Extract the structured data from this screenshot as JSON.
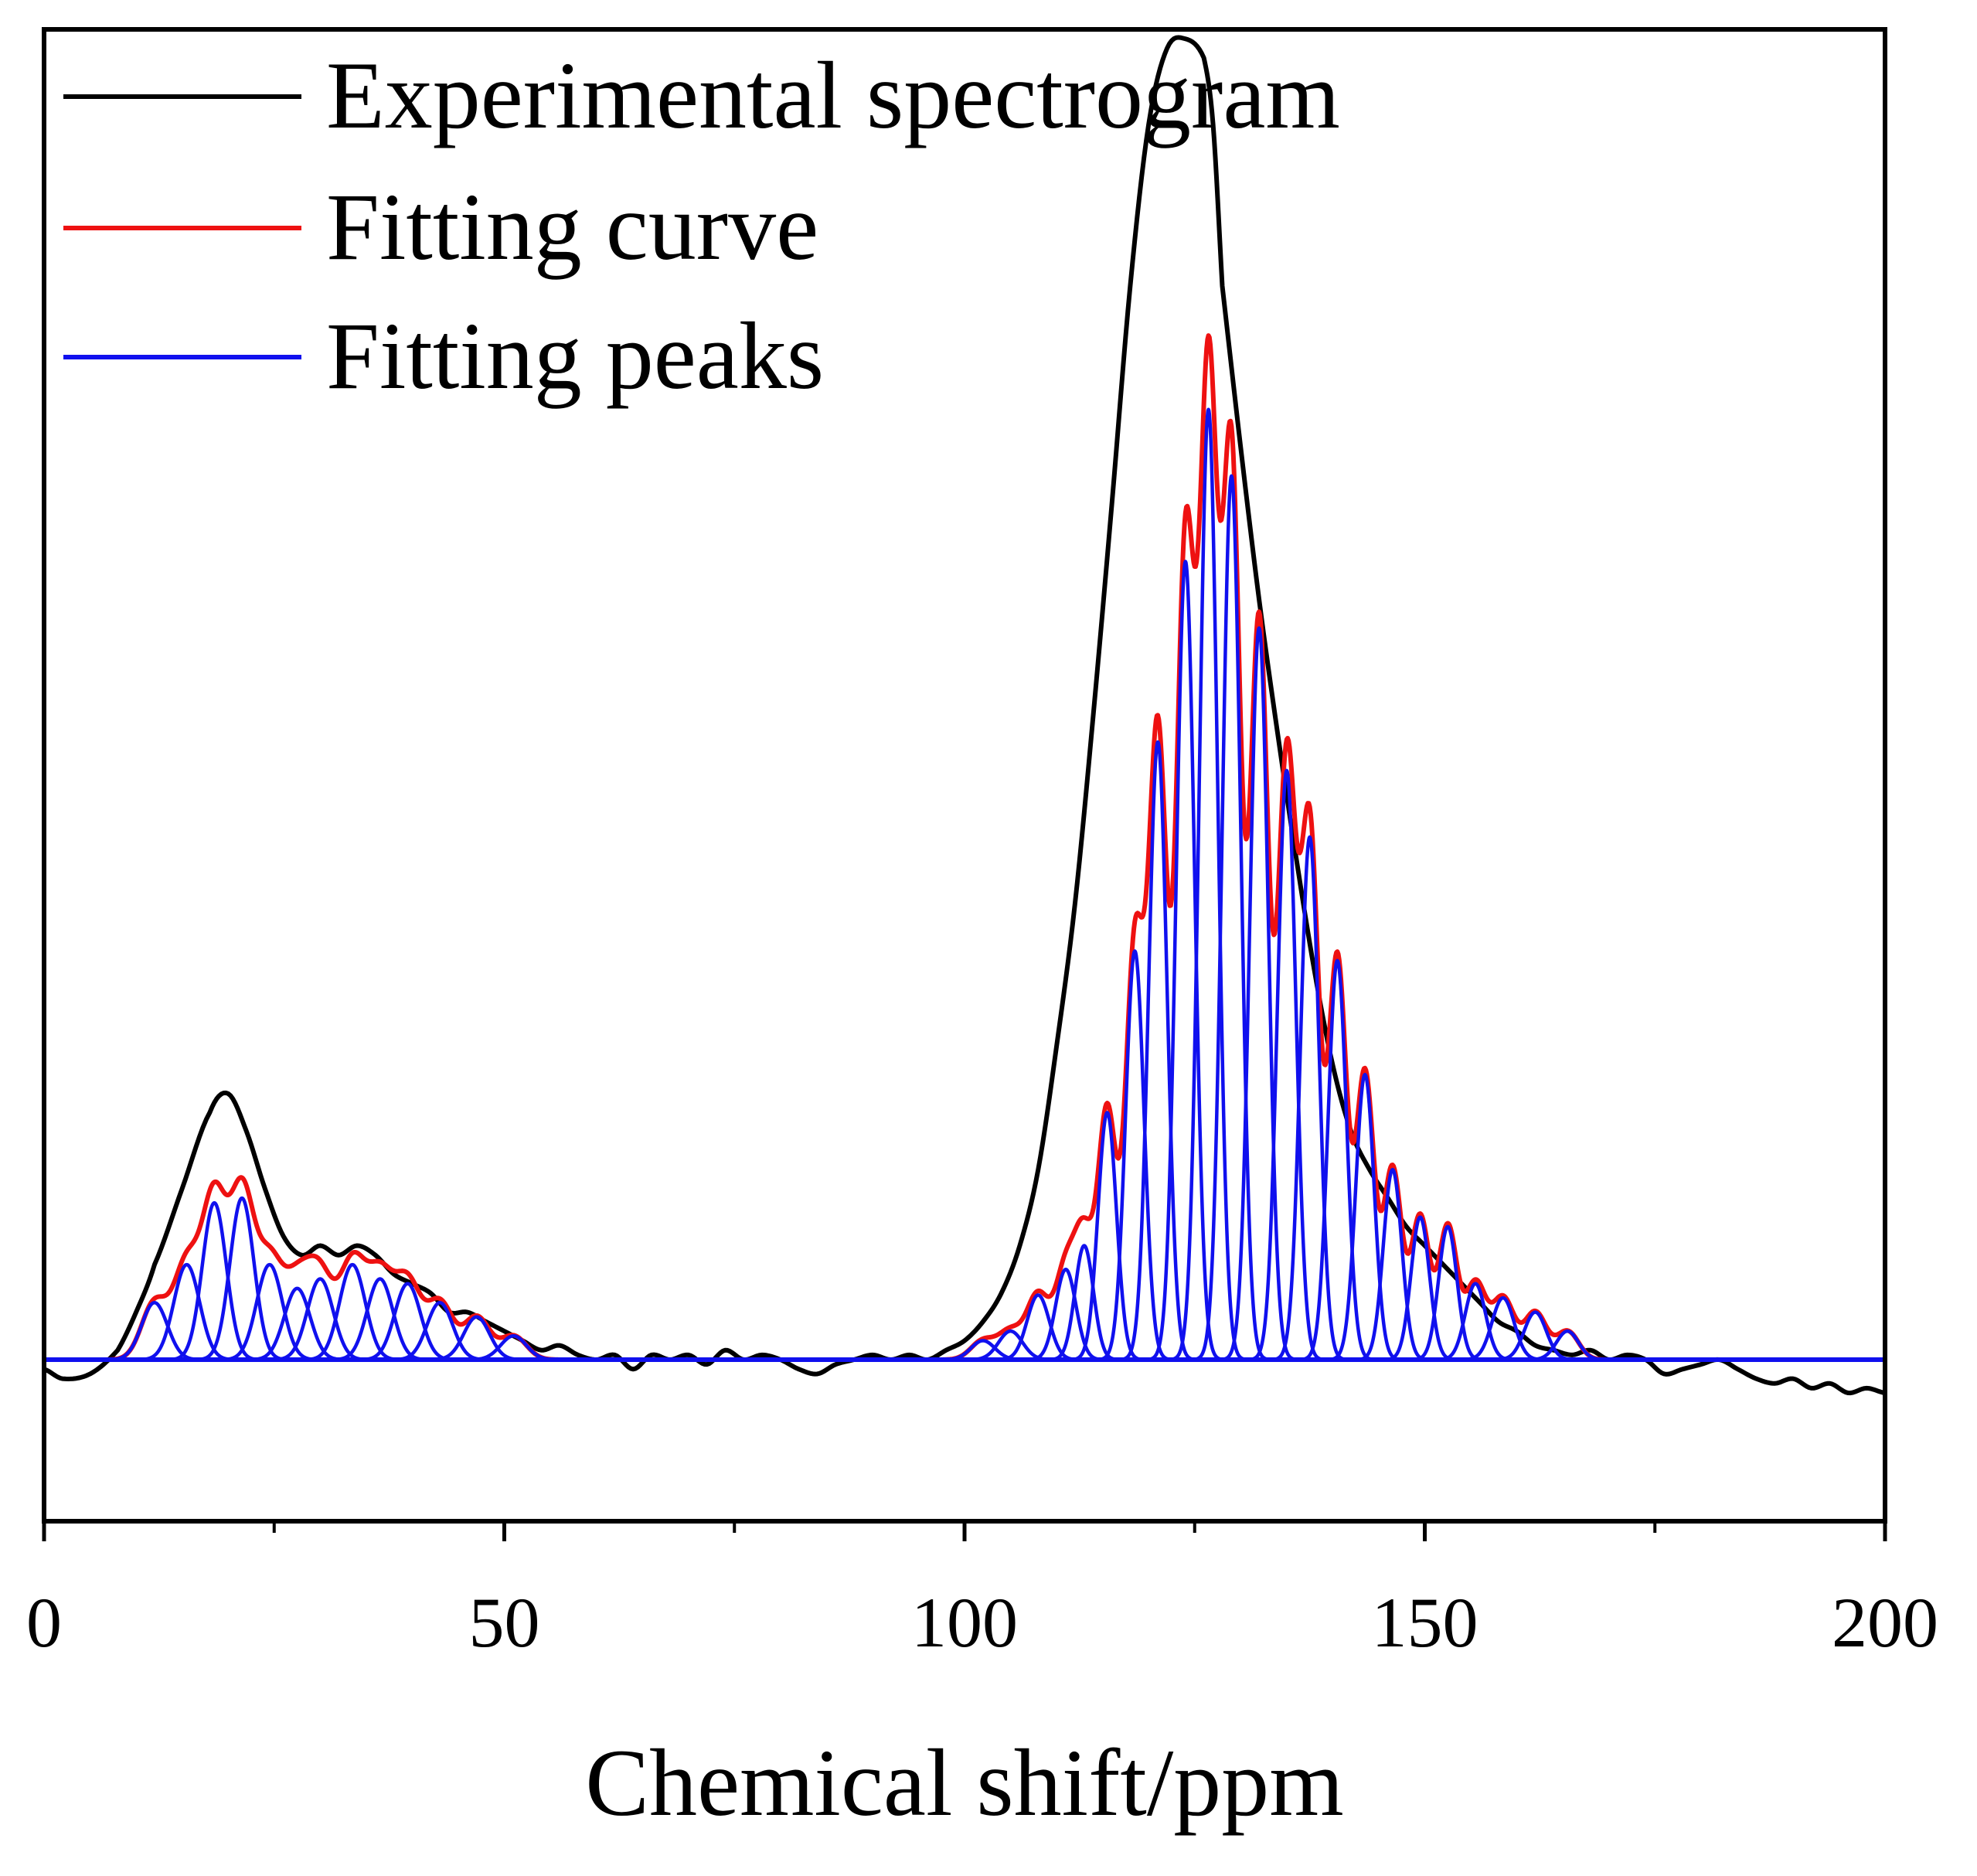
{
  "colors": {
    "experimental": "#000000",
    "fit": "#ee1111",
    "peaks": "#1010ee",
    "axis": "#000000"
  },
  "chart_data": {
    "type": "line",
    "title": "",
    "xlabel": "Chemical shift/ppm",
    "ylabel": "",
    "xlim": [
      0,
      200
    ],
    "ylim": [
      -0.17,
      1.4
    ],
    "x_ticks": [
      0,
      50,
      100,
      150,
      200
    ],
    "x_tick_labels": [
      "0",
      "50",
      "100",
      "150",
      "200"
    ],
    "x_minor_ticks": [
      25,
      75,
      125,
      175
    ],
    "grid": false,
    "legend_position": "top-left",
    "legend": [
      {
        "label": "Experimental spectrogram",
        "series": "experimental"
      },
      {
        "label": "Fitting curve",
        "series": "fit"
      },
      {
        "label": "Fitting peaks",
        "series": "peaks"
      }
    ],
    "series": [
      {
        "name": "Experimental spectrogram",
        "key": "experimental",
        "x": [
          0,
          2,
          5,
          8,
          10,
          12,
          15,
          18,
          20,
          22,
          24,
          26,
          28,
          30,
          32,
          34,
          36,
          38,
          40,
          42,
          44,
          46,
          48,
          50,
          52,
          54,
          56,
          58,
          60,
          62,
          64,
          66,
          68,
          70,
          72,
          74,
          76,
          78,
          80,
          82,
          84,
          86,
          88,
          90,
          92,
          94,
          96,
          98,
          100,
          102,
          104,
          106,
          108,
          110,
          112,
          114,
          116,
          118,
          120,
          122,
          124,
          126,
          127,
          128,
          130,
          132,
          134,
          136,
          138,
          140,
          142,
          144,
          146,
          148,
          150,
          152,
          154,
          156,
          158,
          160,
          162,
          164,
          166,
          168,
          170,
          172,
          174,
          176,
          178,
          180,
          182,
          184,
          186,
          188,
          190,
          192,
          194,
          196,
          198,
          200
        ],
        "y": [
          -0.01,
          -0.02,
          -0.015,
          0.01,
          0.05,
          0.1,
          0.18,
          0.26,
          0.28,
          0.24,
          0.18,
          0.13,
          0.11,
          0.12,
          0.11,
          0.12,
          0.11,
          0.09,
          0.08,
          0.07,
          0.05,
          0.05,
          0.04,
          0.03,
          0.02,
          0.01,
          0.015,
          0.005,
          0.0,
          0.005,
          -0.01,
          0.005,
          0.0,
          0.005,
          -0.005,
          0.01,
          0.0,
          0.005,
          0.0,
          -0.01,
          -0.015,
          -0.005,
          0.0,
          0.005,
          0.0,
          0.005,
          0.0,
          0.01,
          0.02,
          0.04,
          0.07,
          0.12,
          0.2,
          0.33,
          0.48,
          0.68,
          0.9,
          1.13,
          1.3,
          1.38,
          1.39,
          1.37,
          1.3,
          1.13,
          0.96,
          0.8,
          0.66,
          0.53,
          0.41,
          0.31,
          0.24,
          0.2,
          0.17,
          0.14,
          0.12,
          0.1,
          0.08,
          0.06,
          0.04,
          0.03,
          0.015,
          0.01,
          0.005,
          0.01,
          0.0,
          0.005,
          0.0,
          -0.015,
          -0.01,
          -0.005,
          0.0,
          -0.01,
          -0.02,
          -0.025,
          -0.02,
          -0.03,
          -0.025,
          -0.035,
          -0.03,
          -0.035
        ]
      },
      {
        "name": "Fitting curve",
        "key": "fit",
        "computed_as": "sum of fitting peaks"
      },
      {
        "name": "Fitting peaks",
        "key": "peaks",
        "shape": "gaussian",
        "peaks": [
          {
            "center": 12.0,
            "height": 0.06,
            "sigma": 1.4
          },
          {
            "center": 15.5,
            "height": 0.1,
            "sigma": 1.4
          },
          {
            "center": 18.5,
            "height": 0.165,
            "sigma": 1.3
          },
          {
            "center": 21.5,
            "height": 0.17,
            "sigma": 1.3
          },
          {
            "center": 24.5,
            "height": 0.1,
            "sigma": 1.4
          },
          {
            "center": 27.5,
            "height": 0.075,
            "sigma": 1.4
          },
          {
            "center": 30.0,
            "height": 0.085,
            "sigma": 1.4
          },
          {
            "center": 33.5,
            "height": 0.1,
            "sigma": 1.4
          },
          {
            "center": 36.5,
            "height": 0.085,
            "sigma": 1.4
          },
          {
            "center": 39.5,
            "height": 0.08,
            "sigma": 1.4
          },
          {
            "center": 43.0,
            "height": 0.06,
            "sigma": 1.4
          },
          {
            "center": 47.0,
            "height": 0.045,
            "sigma": 1.4
          },
          {
            "center": 51.0,
            "height": 0.025,
            "sigma": 1.4
          },
          {
            "center": 102.0,
            "height": 0.02,
            "sigma": 1.3
          },
          {
            "center": 105.0,
            "height": 0.03,
            "sigma": 1.3
          },
          {
            "center": 108.0,
            "height": 0.068,
            "sigma": 1.2
          },
          {
            "center": 111.0,
            "height": 0.095,
            "sigma": 1.1
          },
          {
            "center": 113.0,
            "height": 0.12,
            "sigma": 1.0
          },
          {
            "center": 115.5,
            "height": 0.26,
            "sigma": 1.0
          },
          {
            "center": 118.5,
            "height": 0.43,
            "sigma": 1.0
          },
          {
            "center": 121.0,
            "height": 0.65,
            "sigma": 1.0
          },
          {
            "center": 124.0,
            "height": 0.84,
            "sigma": 1.0
          },
          {
            "center": 126.5,
            "height": 1.0,
            "sigma": 1.0
          },
          {
            "center": 129.0,
            "height": 0.93,
            "sigma": 1.0
          },
          {
            "center": 132.0,
            "height": 0.77,
            "sigma": 1.0
          },
          {
            "center": 135.0,
            "height": 0.62,
            "sigma": 1.0
          },
          {
            "center": 137.5,
            "height": 0.55,
            "sigma": 1.0
          },
          {
            "center": 140.5,
            "height": 0.42,
            "sigma": 1.0
          },
          {
            "center": 143.5,
            "height": 0.3,
            "sigma": 1.0
          },
          {
            "center": 146.5,
            "height": 0.2,
            "sigma": 1.0
          },
          {
            "center": 149.5,
            "height": 0.15,
            "sigma": 1.0
          },
          {
            "center": 152.5,
            "height": 0.14,
            "sigma": 1.0
          },
          {
            "center": 155.5,
            "height": 0.08,
            "sigma": 1.1
          },
          {
            "center": 158.5,
            "height": 0.065,
            "sigma": 1.2
          },
          {
            "center": 162.0,
            "height": 0.05,
            "sigma": 1.2
          },
          {
            "center": 165.5,
            "height": 0.03,
            "sigma": 1.2
          }
        ]
      }
    ]
  }
}
